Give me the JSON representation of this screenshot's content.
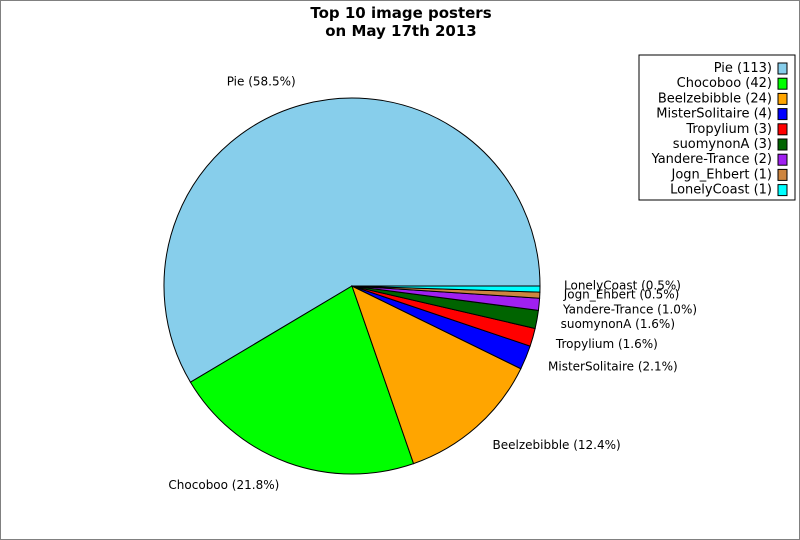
{
  "chart_data": {
    "type": "pie",
    "title": "Top 10 image posters",
    "subtitle": "on May 17th 2013",
    "slices": [
      {
        "name": "Pie",
        "count": 113,
        "percent_label": "58.5%",
        "color": "#87ceeb"
      },
      {
        "name": "Chocoboo",
        "count": 42,
        "percent_label": "21.8%",
        "color": "#00ff00"
      },
      {
        "name": "Beelzebibble",
        "count": 24,
        "percent_label": "12.4%",
        "color": "#ffa500"
      },
      {
        "name": "MisterSolitaire",
        "count": 4,
        "percent_label": "2.1%",
        "color": "#0000ff"
      },
      {
        "name": "Tropylium",
        "count": 3,
        "percent_label": "1.6%",
        "color": "#ff0000"
      },
      {
        "name": "suomynonA",
        "count": 3,
        "percent_label": "1.6%",
        "color": "#006400"
      },
      {
        "name": "Yandere-Trance",
        "count": 2,
        "percent_label": "1.0%",
        "color": "#a020f0"
      },
      {
        "name": "Jogn_Ehbert",
        "count": 1,
        "percent_label": "0.5%",
        "color": "#cd853f"
      },
      {
        "name": "LonelyCoast",
        "count": 1,
        "percent_label": "0.5%",
        "color": "#00ffff"
      }
    ],
    "legend": {
      "placement": "top-right",
      "entries": [
        "Pie (113)",
        "Chocoboo (42)",
        "Beelzebibble (24)",
        "MisterSolitaire (4)",
        "Tropylium (3)",
        "suomynonA (3)",
        "Yandere-Trance (2)",
        "Jogn_Ehbert (1)",
        "LonelyCoast (1)"
      ]
    }
  }
}
